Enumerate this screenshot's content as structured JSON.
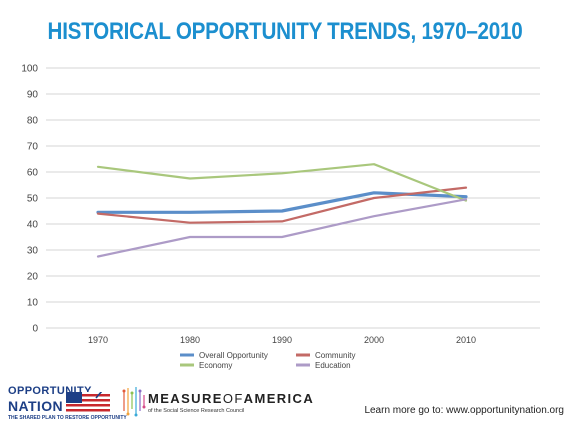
{
  "chart_data": {
    "type": "line",
    "title": "HISTORICAL OPPORTUNITY TRENDS, 1970–2010",
    "xlabel": "",
    "ylabel": "",
    "categories": [
      "1970",
      "1980",
      "1990",
      "2000",
      "2010"
    ],
    "yticks": [
      "0",
      "10",
      "20",
      "30",
      "40",
      "50",
      "60",
      "70",
      "80",
      "90",
      "100"
    ],
    "ylim": [
      0,
      100
    ],
    "grid": true,
    "legend_position": "bottom-center",
    "series": [
      {
        "name": "Overall Opportunity",
        "color": "#5b8ec9",
        "values": [
          44.5,
          44.5,
          45,
          52,
          50.5
        ]
      },
      {
        "name": "Community",
        "color": "#c36a66",
        "values": [
          44,
          40.5,
          41,
          50,
          54
        ]
      },
      {
        "name": "Economy",
        "color": "#a9c77c",
        "values": [
          62,
          57.5,
          59.5,
          63,
          49
        ]
      },
      {
        "name": "Education",
        "color": "#ad9bc7",
        "values": [
          27.5,
          35,
          35,
          43,
          49.5
        ]
      }
    ]
  },
  "footer": {
    "logo_opportunity": "OPPORTUNITY",
    "logo_nation": "NATION",
    "logo_tagline": "THE SHARED PLAN TO RESTORE OPPORTUNITY",
    "moa_measure": "MEASURE",
    "moa_of": "OF",
    "moa_america": "AMERICA",
    "moa_subtitle": "of the Social Science Research Council",
    "learn_more": "Learn more go to: www.opportunitynation.org"
  }
}
